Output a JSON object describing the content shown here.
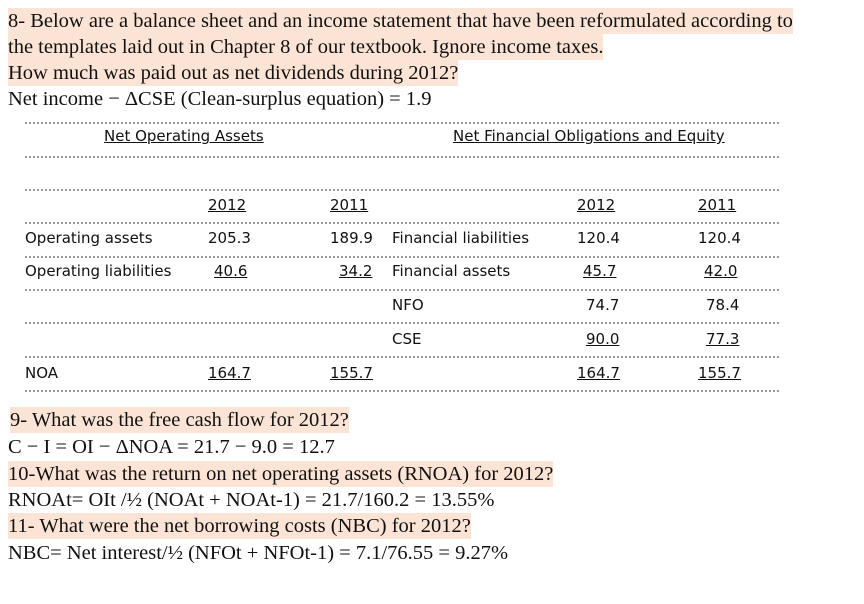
{
  "intro": [
    "8- Below are a balance sheet and an income statement that have been reformulated according to",
    "the templates laid out in Chapter 8 of our textbook. Ignore income taxes.",
    "How much was paid out as net dividends during 2012?",
    "Net income − ΔCSE        (Clean-surplus equation) =  1.9"
  ],
  "table": {
    "headers": [
      "Net Operating Assets",
      "Net Financial Obligations and Equity"
    ],
    "years": [
      "2012",
      "2011",
      "2012",
      "2011"
    ],
    "rows": [
      {
        "left_label": "Operating assets",
        "left_2012": "205.3",
        "left_2011": "189.9",
        "right_label": "Financial liabilities",
        "right_2012": "120.4",
        "right_2011": "120.4"
      },
      {
        "left_label": "Operating liabilities",
        "left_2012": "40.6",
        "left_2011": "34.2",
        "right_label": "Financial assets",
        "right_2012": "45.7",
        "right_2011": "42.0"
      },
      {
        "right_label": "NFO",
        "right_2012": "74.7",
        "right_2011": "78.4"
      },
      {
        "right_label": "CSE",
        "right_2012": "90.0",
        "right_2011": "77.3"
      },
      {
        "left_label": "NOA",
        "left_2012": "164.7",
        "left_2011": "155.7",
        "right_2012": "164.7",
        "right_2011": "155.7"
      }
    ]
  },
  "questions": [
    {
      "question": "9- What was the free cash flow for 2012?",
      "answer": "C − I =  OI − ΔNOA =  21.7 − 9.0 =  12.7"
    },
    {
      "question": "10-What was the return on net operating assets (RNOA) for 2012?",
      "answer": "RNOAt=  OIt /½ (NOAt + NOAt-1) =  21.7/160.2 =  13.55%"
    },
    {
      "question": "11- What were the net borrowing costs (NBC) for 2012?",
      "answer": "NBC=  Net interest/½ (NFOt + NFOt-1) =  7.1/76.55 =  9.27%"
    }
  ]
}
